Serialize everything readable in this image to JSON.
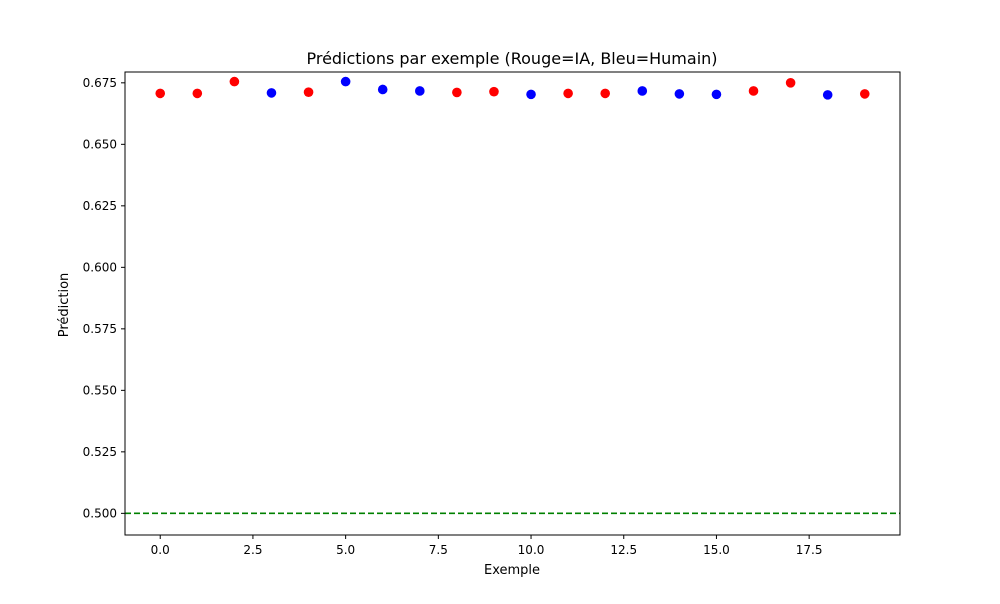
{
  "chart_data": {
    "type": "scatter",
    "title": "Prédictions par exemple (Rouge=IA, Bleu=Humain)",
    "xlabel": "Exemple",
    "ylabel": "Prédiction",
    "xlim": [
      -0.95,
      19.95
    ],
    "ylim": [
      0.4912,
      0.6794
    ],
    "x_ticks": [
      0.0,
      2.5,
      5.0,
      7.5,
      10.0,
      12.5,
      15.0,
      17.5
    ],
    "x_tick_labels": [
      "0.0",
      "2.5",
      "5.0",
      "7.5",
      "10.0",
      "12.5",
      "15.0",
      "17.5"
    ],
    "y_ticks": [
      0.5,
      0.525,
      0.55,
      0.575,
      0.6,
      0.625,
      0.65,
      0.675
    ],
    "y_tick_labels": [
      "0.500",
      "0.525",
      "0.550",
      "0.575",
      "0.600",
      "0.625",
      "0.650",
      "0.675"
    ],
    "grid": false,
    "colors": {
      "ia": "#ff0000",
      "humain": "#0000ff",
      "threshold": "#008000"
    },
    "points": [
      {
        "x": 0,
        "y": 0.6707,
        "class": "ia"
      },
      {
        "x": 1,
        "y": 0.6707,
        "class": "ia"
      },
      {
        "x": 2,
        "y": 0.6755,
        "class": "ia"
      },
      {
        "x": 3,
        "y": 0.6709,
        "class": "humain"
      },
      {
        "x": 4,
        "y": 0.6712,
        "class": "ia"
      },
      {
        "x": 5,
        "y": 0.6755,
        "class": "humain"
      },
      {
        "x": 6,
        "y": 0.6723,
        "class": "humain"
      },
      {
        "x": 7,
        "y": 0.6717,
        "class": "humain"
      },
      {
        "x": 8,
        "y": 0.6711,
        "class": "ia"
      },
      {
        "x": 9,
        "y": 0.6714,
        "class": "ia"
      },
      {
        "x": 10,
        "y": 0.6703,
        "class": "humain"
      },
      {
        "x": 11,
        "y": 0.6707,
        "class": "ia"
      },
      {
        "x": 12,
        "y": 0.6707,
        "class": "ia"
      },
      {
        "x": 13,
        "y": 0.6717,
        "class": "humain"
      },
      {
        "x": 14,
        "y": 0.6705,
        "class": "humain"
      },
      {
        "x": 15,
        "y": 0.6703,
        "class": "humain"
      },
      {
        "x": 16,
        "y": 0.6717,
        "class": "ia"
      },
      {
        "x": 17,
        "y": 0.675,
        "class": "ia"
      },
      {
        "x": 18,
        "y": 0.6701,
        "class": "humain"
      },
      {
        "x": 19,
        "y": 0.6705,
        "class": "ia"
      }
    ],
    "threshold": 0.5
  }
}
